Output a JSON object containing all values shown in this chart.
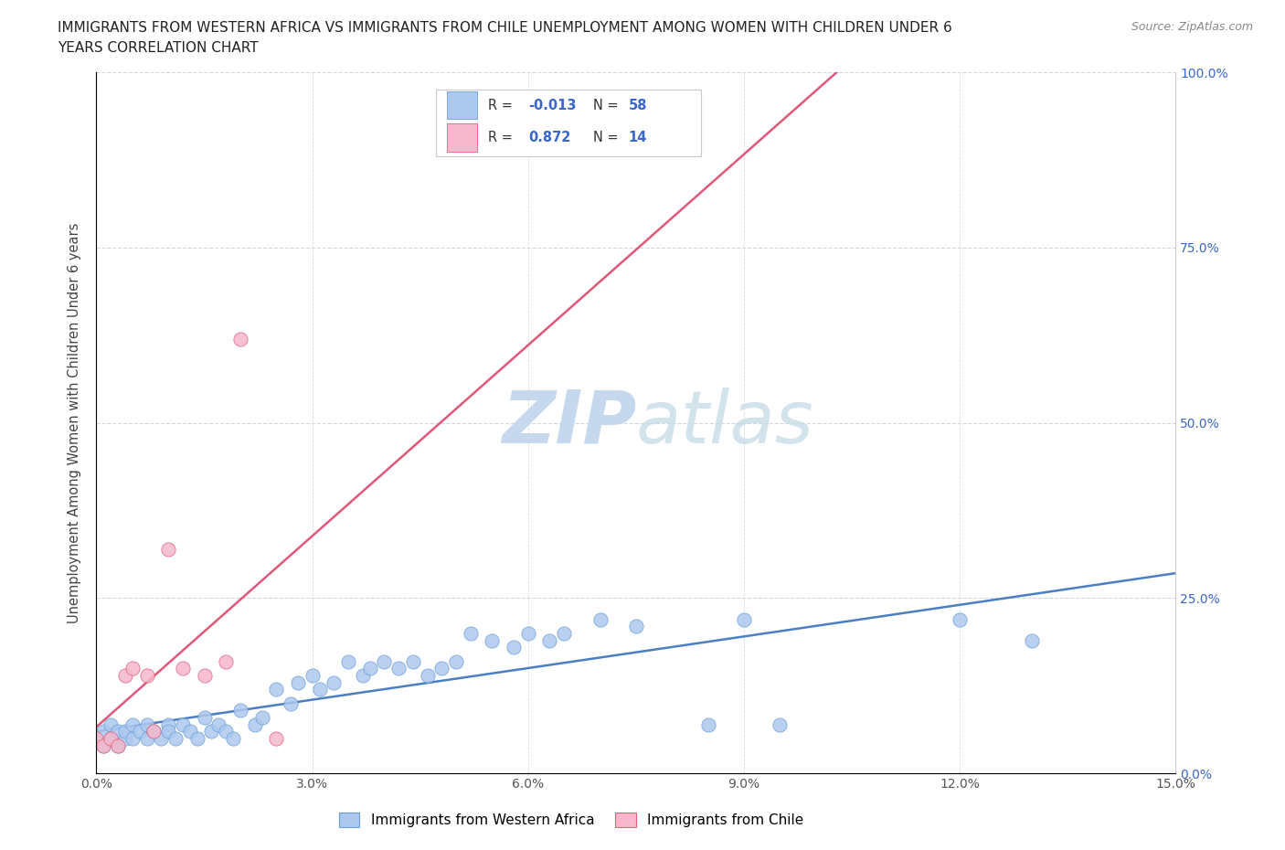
{
  "title_line1": "IMMIGRANTS FROM WESTERN AFRICA VS IMMIGRANTS FROM CHILE UNEMPLOYMENT AMONG WOMEN WITH CHILDREN UNDER 6",
  "title_line2": "YEARS CORRELATION CHART",
  "source": "Source: ZipAtlas.com",
  "ylabel": "Unemployment Among Women with Children Under 6 years",
  "x_min": 0.0,
  "x_max": 0.15,
  "y_min": 0.0,
  "y_max": 1.0,
  "western_africa_color": "#adc8ef",
  "western_africa_edge": "#6b9fd4",
  "chile_color": "#f5b8cc",
  "chile_edge": "#e0607a",
  "wa_line_color": "#4a7fc1",
  "chile_line_color": "#e05878",
  "legend_R_color": "#3a66cc",
  "legend_N_color": "#3a66cc",
  "watermark_color": "#c5d8ee",
  "wa_R": "-0.013",
  "wa_N": "58",
  "ch_R": "0.872",
  "ch_N": "14",
  "wa_x": [
    0.0,
    0.001,
    0.001,
    0.002,
    0.002,
    0.003,
    0.003,
    0.004,
    0.004,
    0.005,
    0.005,
    0.006,
    0.007,
    0.007,
    0.008,
    0.009,
    0.01,
    0.01,
    0.011,
    0.012,
    0.013,
    0.014,
    0.015,
    0.016,
    0.017,
    0.018,
    0.019,
    0.02,
    0.022,
    0.023,
    0.025,
    0.027,
    0.028,
    0.03,
    0.031,
    0.033,
    0.035,
    0.037,
    0.038,
    0.04,
    0.042,
    0.044,
    0.046,
    0.048,
    0.05,
    0.052,
    0.055,
    0.058,
    0.06,
    0.063,
    0.065,
    0.07,
    0.075,
    0.085,
    0.09,
    0.095,
    0.12,
    0.13
  ],
  "wa_y": [
    0.05,
    0.04,
    0.06,
    0.05,
    0.07,
    0.04,
    0.06,
    0.05,
    0.06,
    0.05,
    0.07,
    0.06,
    0.05,
    0.07,
    0.06,
    0.05,
    0.07,
    0.06,
    0.05,
    0.07,
    0.06,
    0.05,
    0.08,
    0.06,
    0.07,
    0.06,
    0.05,
    0.09,
    0.07,
    0.08,
    0.12,
    0.1,
    0.13,
    0.14,
    0.12,
    0.13,
    0.16,
    0.14,
    0.15,
    0.16,
    0.15,
    0.16,
    0.14,
    0.15,
    0.16,
    0.2,
    0.19,
    0.18,
    0.2,
    0.19,
    0.2,
    0.22,
    0.21,
    0.07,
    0.22,
    0.07,
    0.22,
    0.19
  ],
  "ch_x": [
    0.0,
    0.001,
    0.002,
    0.003,
    0.004,
    0.005,
    0.007,
    0.008,
    0.01,
    0.012,
    0.015,
    0.018,
    0.02,
    0.025
  ],
  "ch_y": [
    0.05,
    0.04,
    0.05,
    0.04,
    0.14,
    0.15,
    0.14,
    0.06,
    0.32,
    0.15,
    0.14,
    0.16,
    0.62,
    0.05
  ]
}
